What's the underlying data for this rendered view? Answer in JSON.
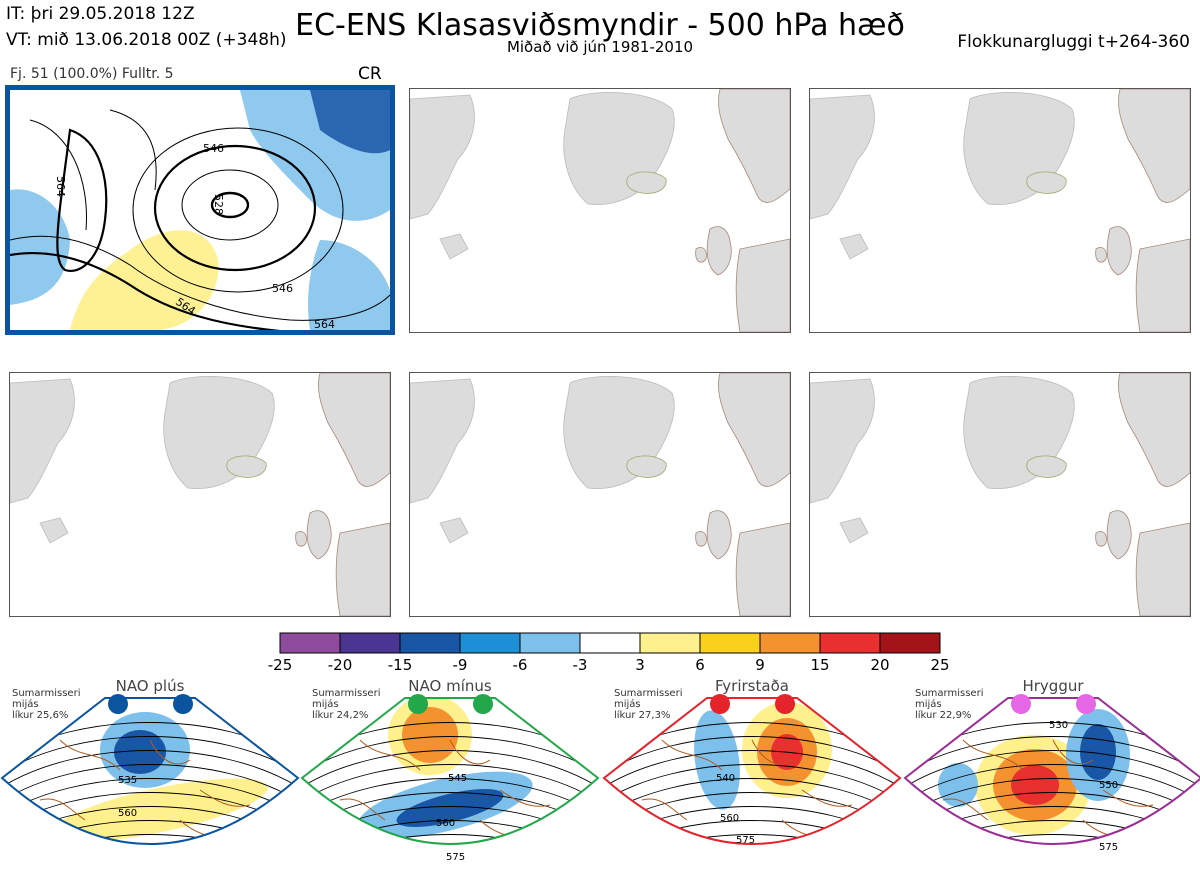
{
  "header": {
    "it_line": "IT: þri 29.05.2018 12Z",
    "vt_line": "VT: mið 13.06.2018 00Z  (+348h)",
    "title": "EC-ENS Klasasviðsmyndir - 500 hPa hæð",
    "subtitle": "Miðað við jún 1981-2010",
    "window": "Flokkunargluggi t+264-360"
  },
  "active_panel": {
    "info": "Fj. 51 (100.0%)   Fulltr. 5",
    "code": "CR",
    "contour_labels": [
      "546",
      "528",
      "546",
      "564",
      "564",
      "564"
    ]
  },
  "colorbar": {
    "colors": [
      "#8e4b9e",
      "#4a3593",
      "#1a56a6",
      "#1d8fd6",
      "#7cc0eb",
      "#ffffff",
      "#fdf08d",
      "#fbd01d",
      "#f4922f",
      "#e8302e",
      "#a31418"
    ],
    "labels": [
      "-25",
      "-20",
      "-15",
      "-9",
      "-6",
      "-3",
      "3",
      "6",
      "9",
      "15",
      "20",
      "25"
    ]
  },
  "regimes": [
    {
      "name": "NAO plús",
      "note_l1": "Sumarmisseri",
      "note_l2": "mijás",
      "note_l3": "líkur 25,6%",
      "color": "#0b55a0",
      "labels": [
        "535",
        "560"
      ]
    },
    {
      "name": "NAO mínus",
      "note_l1": "Sumarmisseri",
      "note_l2": "mijás",
      "note_l3": "líkur 24,2%",
      "color": "#22a84a",
      "labels": [
        "545",
        "560",
        "575"
      ]
    },
    {
      "name": "Fyrirstaða",
      "note_l1": "Sumarmisseri",
      "note_l2": "mijás",
      "note_l3": "líkur 27,3%",
      "color": "#e4232b",
      "labels": [
        "540",
        "560",
        "575"
      ]
    },
    {
      "name": "Hryggur",
      "note_l1": "Sumarmisseri",
      "note_l2": "mijás",
      "note_l3": "líkur 22,9%",
      "color": "#9b2c95",
      "labels": [
        "530",
        "550",
        "575"
      ]
    }
  ]
}
